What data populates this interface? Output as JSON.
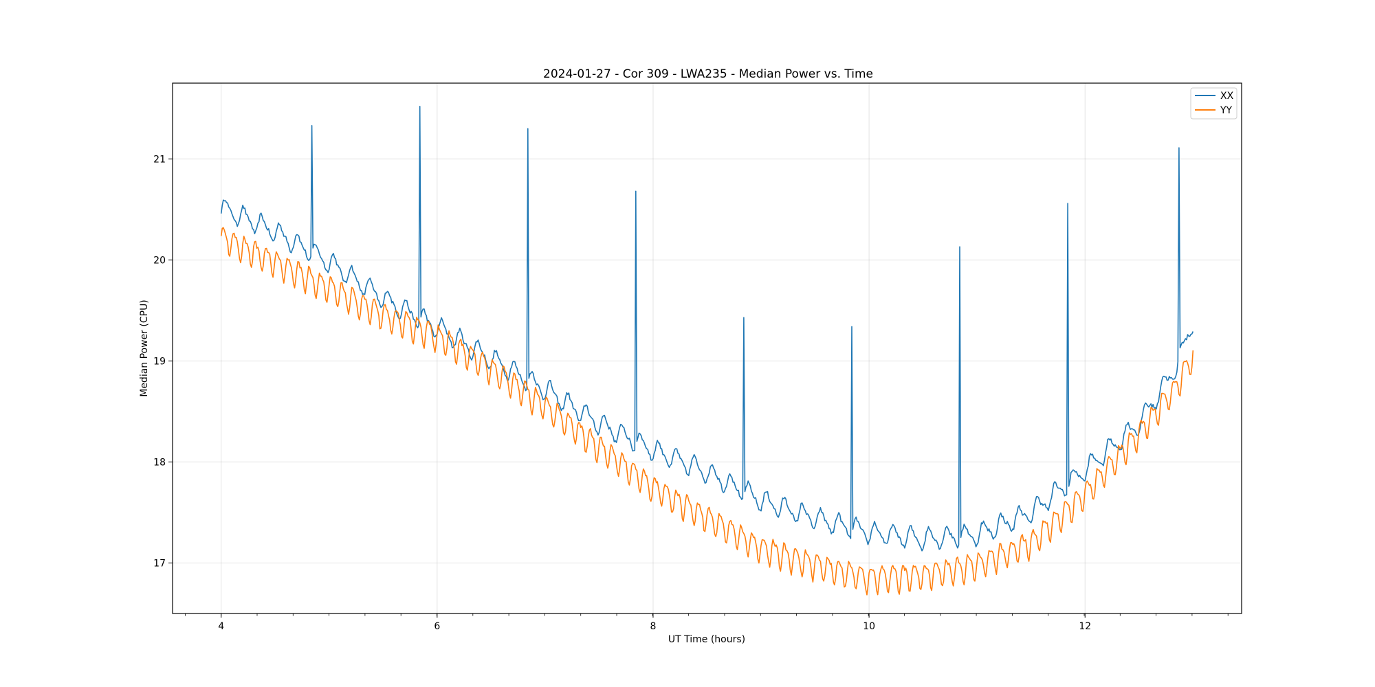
{
  "chart_data": {
    "type": "line",
    "title": "2024-01-27 - Cor 309 - LWA235 - Median Power vs. Time",
    "xlabel": "UT Time (hours)",
    "ylabel": "Median Power (CPU)",
    "xlim": [
      3.55,
      13.45
    ],
    "ylim": [
      16.5,
      21.75
    ],
    "xticks": [
      4,
      6,
      8,
      10,
      12
    ],
    "xtick_labels": [
      "4",
      "6",
      "8",
      "10",
      "12"
    ],
    "yticks": [
      17,
      18,
      19,
      20,
      21
    ],
    "ytick_labels": [
      "17",
      "18",
      "19",
      "20",
      "21"
    ],
    "x_minor_step": 0.333,
    "grid": true,
    "legend_position": "top-right",
    "series": [
      {
        "name": "XX",
        "color": "#1f77b4",
        "trend_points": [
          [
            4.0,
            20.52
          ],
          [
            4.5,
            20.28
          ],
          [
            5.0,
            19.98
          ],
          [
            5.5,
            19.62
          ],
          [
            6.0,
            19.33
          ],
          [
            6.5,
            19.02
          ],
          [
            7.0,
            18.72
          ],
          [
            7.5,
            18.38
          ],
          [
            8.0,
            18.12
          ],
          [
            8.5,
            17.9
          ],
          [
            9.0,
            17.62
          ],
          [
            9.5,
            17.44
          ],
          [
            10.0,
            17.3
          ],
          [
            10.5,
            17.24
          ],
          [
            11.0,
            17.28
          ],
          [
            11.5,
            17.5
          ],
          [
            12.0,
            17.92
          ],
          [
            12.5,
            18.38
          ],
          [
            12.85,
            18.95
          ],
          [
            13.0,
            19.4
          ]
        ],
        "ripple_amplitude": 0.09,
        "ripple_period_hours": 0.167,
        "spikes": [
          [
            4.84,
            21.33
          ],
          [
            5.84,
            21.52
          ],
          [
            6.84,
            21.3
          ],
          [
            7.84,
            20.68
          ],
          [
            8.84,
            19.43
          ],
          [
            9.84,
            19.34
          ],
          [
            10.84,
            20.13
          ],
          [
            11.84,
            20.56
          ],
          [
            12.87,
            21.11
          ]
        ]
      },
      {
        "name": "YY",
        "color": "#ff7f0e",
        "trend_points": [
          [
            4.0,
            20.22
          ],
          [
            4.5,
            19.98
          ],
          [
            5.0,
            19.72
          ],
          [
            5.5,
            19.45
          ],
          [
            6.0,
            19.25
          ],
          [
            6.5,
            18.92
          ],
          [
            7.0,
            18.55
          ],
          [
            7.5,
            18.15
          ],
          [
            8.0,
            17.75
          ],
          [
            8.5,
            17.45
          ],
          [
            9.0,
            17.15
          ],
          [
            9.5,
            16.98
          ],
          [
            10.0,
            16.85
          ],
          [
            10.5,
            16.88
          ],
          [
            11.0,
            16.98
          ],
          [
            11.5,
            17.2
          ],
          [
            12.0,
            17.68
          ],
          [
            12.5,
            18.28
          ],
          [
            12.85,
            18.75
          ],
          [
            13.0,
            19.05
          ]
        ],
        "ripple_amplitude": 0.12,
        "ripple_period_hours": 0.1,
        "spikes": []
      }
    ]
  }
}
